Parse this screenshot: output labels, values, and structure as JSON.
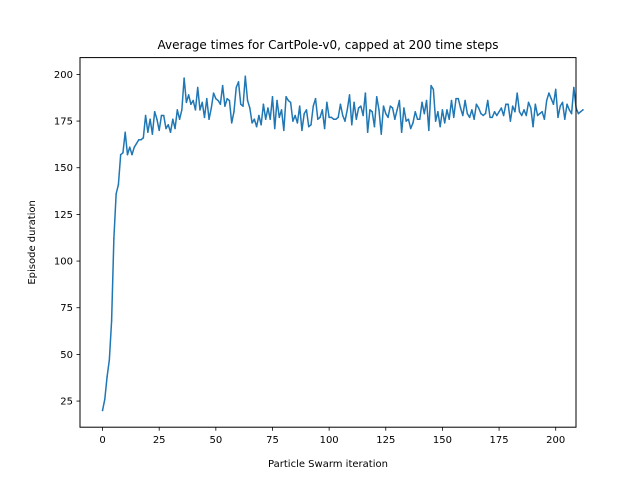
{
  "chart_data": {
    "type": "line",
    "title": "Average times for CartPole-v0, capped at 200 time steps",
    "xlabel": "Particle Swarm iteration",
    "ylabel": "Episode duration",
    "xlim": [
      -9.95,
      208.95
    ],
    "ylim": [
      11,
      209
    ],
    "xticks": [
      0,
      25,
      50,
      75,
      100,
      125,
      150,
      175,
      200
    ],
    "yticks": [
      25,
      50,
      75,
      100,
      125,
      150,
      175,
      200
    ],
    "grid": false,
    "series": [
      {
        "color": "#1f77b4",
        "x_start": 0,
        "x_step": 1,
        "values": [
          20,
          26,
          38,
          47,
          68,
          112,
          136,
          141,
          157,
          158,
          169,
          157,
          161,
          157,
          161,
          163,
          165,
          165,
          166,
          178,
          169,
          176,
          168,
          180,
          176,
          170,
          178,
          178,
          171,
          173,
          169,
          176,
          171,
          181,
          176,
          181,
          198,
          185,
          189,
          184,
          186,
          181,
          193,
          181,
          185,
          177,
          187,
          176,
          182,
          190,
          187,
          186,
          184,
          194,
          183,
          187,
          186,
          174,
          180,
          193,
          196,
          184,
          183,
          199,
          186,
          182,
          174,
          176,
          172,
          178,
          173,
          184,
          176,
          182,
          176,
          188,
          171,
          186,
          177,
          181,
          170,
          188,
          186,
          185,
          175,
          178,
          174,
          183,
          170,
          179,
          181,
          172,
          173,
          183,
          187,
          176,
          177,
          181,
          171,
          185,
          177,
          177,
          176,
          176,
          177,
          184,
          178,
          175,
          181,
          189,
          173,
          185,
          176,
          182,
          183,
          178,
          190,
          169,
          181,
          180,
          172,
          188,
          181,
          168,
          183,
          179,
          177,
          183,
          182,
          176,
          181,
          186,
          169,
          182,
          175,
          176,
          171,
          174,
          180,
          176,
          176,
          185,
          179,
          186,
          170,
          194,
          192,
          175,
          180,
          172,
          181,
          174,
          181,
          176,
          186,
          177,
          187,
          187,
          182,
          178,
          186,
          179,
          177,
          181,
          176,
          184,
          182,
          179,
          178,
          179,
          186,
          177,
          177,
          180,
          178,
          180,
          182,
          178,
          184,
          184,
          175,
          183,
          180,
          190,
          180,
          178,
          181,
          178,
          185,
          182,
          172,
          184,
          178,
          179,
          180,
          176,
          186,
          190,
          187,
          184,
          192,
          177,
          183,
          185,
          176,
          184,
          181,
          179,
          193,
          182,
          179,
          180,
          181
        ]
      }
    ]
  }
}
